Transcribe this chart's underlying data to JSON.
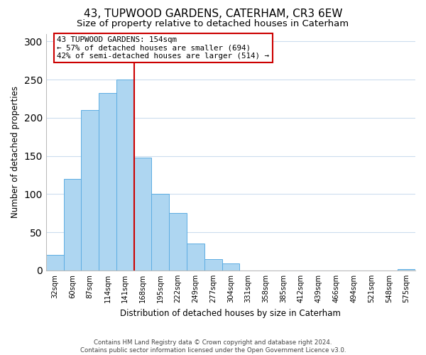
{
  "title": "43, TUPWOOD GARDENS, CATERHAM, CR3 6EW",
  "subtitle": "Size of property relative to detached houses in Caterham",
  "xlabel": "Distribution of detached houses by size in Caterham",
  "ylabel": "Number of detached properties",
  "bin_labels": [
    "32sqm",
    "60sqm",
    "87sqm",
    "114sqm",
    "141sqm",
    "168sqm",
    "195sqm",
    "222sqm",
    "249sqm",
    "277sqm",
    "304sqm",
    "331sqm",
    "358sqm",
    "385sqm",
    "412sqm",
    "439sqm",
    "466sqm",
    "494sqm",
    "521sqm",
    "548sqm",
    "575sqm"
  ],
  "bar_heights": [
    20,
    120,
    210,
    232,
    250,
    148,
    100,
    75,
    35,
    15,
    9,
    0,
    0,
    0,
    0,
    0,
    0,
    0,
    0,
    0,
    2
  ],
  "bar_color": "#aed6f1",
  "bar_edge_color": "#5dade2",
  "vline_x": 4.5,
  "vline_color": "#cc0000",
  "annotation_title": "43 TUPWOOD GARDENS: 154sqm",
  "annotation_line1": "← 57% of detached houses are smaller (694)",
  "annotation_line2": "42% of semi-detached houses are larger (514) →",
  "annotation_box_color": "#ffffff",
  "annotation_box_edge": "#cc0000",
  "ylim": [
    0,
    310
  ],
  "yticks": [
    0,
    50,
    100,
    150,
    200,
    250,
    300
  ],
  "footer_line1": "Contains HM Land Registry data © Crown copyright and database right 2024.",
  "footer_line2": "Contains public sector information licensed under the Open Government Licence v3.0.",
  "background_color": "#ffffff",
  "grid_color": "#ccddee",
  "title_fontsize": 11,
  "subtitle_fontsize": 9.5
}
